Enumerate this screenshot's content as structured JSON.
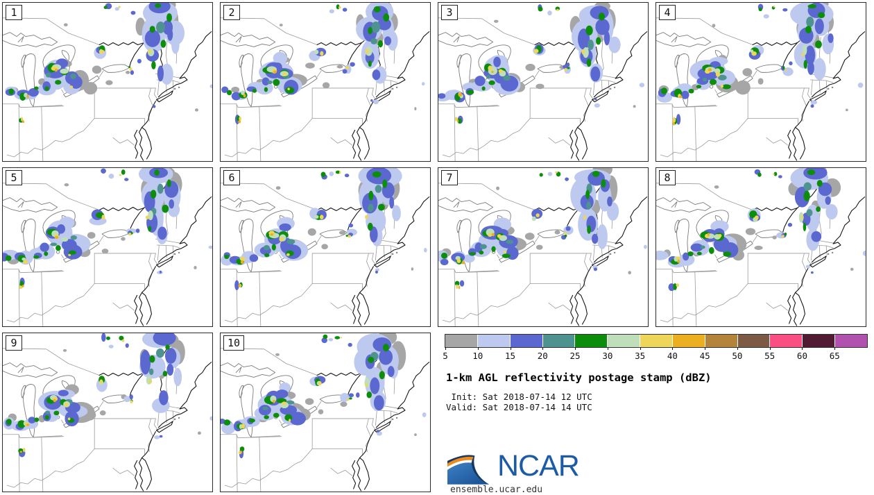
{
  "title": "1-km AGL reflectivity postage stamp (dBZ)",
  "init_line": " Init: Sat 2018-07-14 12 UTC",
  "valid_line": "Valid: Sat 2018-07-14 14 UTC",
  "logo": {
    "text": "NCAR",
    "url": "ensemble.ucar.edu",
    "blue": "#1d5ba6",
    "orange": "#ef8a1f"
  },
  "colorbar": {
    "ticks": [
      "5",
      "10",
      "15",
      "20",
      "25",
      "30",
      "35",
      "40",
      "45",
      "50",
      "55",
      "60",
      "65"
    ],
    "colors": [
      "#a6a6a6",
      "#bdc9ee",
      "#5a68cf",
      "#4f9391",
      "#0c8e0c",
      "#bedfba",
      "#eed65a",
      "#ecaf21",
      "#b5843b",
      "#7d5a44",
      "#fa4f82",
      "#521b34",
      "#b153ae"
    ]
  },
  "panels": [
    {
      "label": "1",
      "seed": 3
    },
    {
      "label": "2",
      "seed": 17
    },
    {
      "label": "3",
      "seed": 29
    },
    {
      "label": "4",
      "seed": 43
    },
    {
      "label": "5",
      "seed": 57
    },
    {
      "label": "6",
      "seed": 71
    },
    {
      "label": "7",
      "seed": 85
    },
    {
      "label": "8",
      "seed": 99
    },
    {
      "label": "9",
      "seed": 113
    },
    {
      "label": "10",
      "seed": 127
    }
  ],
  "splat_levels": [
    "#a6a6a6",
    "#bdc9ee",
    "#5a68cf",
    "#4f9391",
    "#0c8e0c",
    "#bedfba",
    "#eed65a",
    "#ecaf21"
  ],
  "base_splats": [
    [
      252,
      28,
      11,
      18,
      0
    ],
    [
      240,
      7,
      13,
      9,
      0
    ],
    [
      205,
      32,
      7,
      11,
      0
    ],
    [
      232,
      52,
      6,
      9,
      0
    ],
    [
      108,
      112,
      17,
      12,
      0
    ],
    [
      122,
      121,
      10,
      8,
      0
    ],
    [
      95,
      86,
      9,
      6,
      0
    ],
    [
      132,
      96,
      6,
      5,
      0
    ],
    [
      56,
      120,
      6,
      5,
      0
    ],
    [
      16,
      128,
      7,
      5,
      0
    ],
    [
      87,
      30,
      3,
      2,
      0
    ],
    [
      282,
      150,
      2,
      2,
      0
    ],
    [
      176,
      98,
      4,
      3,
      0
    ],
    [
      150,
      118,
      5,
      4,
      0
    ],
    [
      228,
      14,
      26,
      15,
      1
    ],
    [
      214,
      44,
      15,
      23,
      1
    ],
    [
      222,
      77,
      13,
      20,
      1
    ],
    [
      244,
      38,
      11,
      17,
      1
    ],
    [
      233,
      100,
      10,
      14,
      1
    ],
    [
      252,
      60,
      7,
      12,
      1
    ],
    [
      80,
      100,
      23,
      18,
      1
    ],
    [
      101,
      115,
      17,
      12,
      1
    ],
    [
      66,
      120,
      13,
      10,
      1
    ],
    [
      91,
      85,
      11,
      8,
      1
    ],
    [
      8,
      132,
      10,
      7,
      1
    ],
    [
      28,
      133,
      12,
      8,
      1
    ],
    [
      46,
      128,
      10,
      7,
      1
    ],
    [
      142,
      72,
      10,
      8,
      1
    ],
    [
      186,
      96,
      6,
      5,
      1
    ],
    [
      160,
      14,
      4,
      3,
      1
    ],
    [
      300,
      118,
      3,
      3,
      1
    ],
    [
      225,
      146,
      4,
      3,
      1
    ],
    [
      231,
      11,
      15,
      10,
      2
    ],
    [
      212,
      47,
      9,
      14,
      2
    ],
    [
      220,
      80,
      8,
      12,
      2
    ],
    [
      241,
      30,
      8,
      10,
      2
    ],
    [
      228,
      99,
      6,
      9,
      2
    ],
    [
      248,
      52,
      4,
      8,
      2
    ],
    [
      75,
      98,
      13,
      10,
      2
    ],
    [
      96,
      108,
      11,
      9,
      2
    ],
    [
      106,
      119,
      11,
      9,
      2
    ],
    [
      62,
      117,
      7,
      6,
      2
    ],
    [
      88,
      91,
      7,
      6,
      2
    ],
    [
      6,
      131,
      6,
      5,
      2
    ],
    [
      26,
      133,
      8,
      6,
      2
    ],
    [
      45,
      128,
      6,
      5,
      2
    ],
    [
      142,
      72,
      7,
      6,
      2
    ],
    [
      186,
      96,
      3,
      3,
      2
    ],
    [
      194,
      88,
      3,
      3,
      2
    ],
    [
      150,
      10,
      4,
      5,
      2
    ],
    [
      185,
      12,
      3,
      3,
      2
    ],
    [
      28,
      170,
      4,
      6,
      2
    ],
    [
      225,
      146,
      2,
      2,
      2
    ],
    [
      224,
      30,
      5,
      7,
      3
    ],
    [
      218,
      60,
      4,
      6,
      3
    ],
    [
      98,
      104,
      5,
      4,
      3
    ],
    [
      70,
      110,
      4,
      3,
      3
    ],
    [
      218,
      38,
      4,
      6,
      4
    ],
    [
      226,
      7,
      5,
      4,
      4
    ],
    [
      234,
      58,
      4,
      5,
      4
    ],
    [
      216,
      88,
      3,
      5,
      4
    ],
    [
      240,
      20,
      4,
      5,
      4
    ],
    [
      72,
      95,
      7,
      6,
      4
    ],
    [
      90,
      100,
      6,
      5,
      4
    ],
    [
      100,
      125,
      5,
      4,
      4
    ],
    [
      80,
      118,
      4,
      4,
      4
    ],
    [
      64,
      124,
      3,
      3,
      4
    ],
    [
      10,
      130,
      4,
      4,
      4
    ],
    [
      30,
      134,
      5,
      5,
      4
    ],
    [
      48,
      127,
      4,
      3,
      4
    ],
    [
      143,
      70,
      5,
      5,
      4
    ],
    [
      150,
      8,
      3,
      3,
      4
    ],
    [
      172,
      8,
      3,
      3,
      4
    ],
    [
      28,
      170,
      3,
      4,
      4
    ],
    [
      186,
      96,
      2,
      2,
      4
    ],
    [
      76,
      96,
      6,
      5,
      5
    ],
    [
      91,
      102,
      5,
      4,
      5
    ],
    [
      213,
      70,
      4,
      6,
      5
    ],
    [
      141,
      73,
      3,
      3,
      5
    ],
    [
      31,
      133,
      3,
      3,
      5
    ],
    [
      76,
      97,
      4,
      3,
      6
    ],
    [
      91,
      101,
      3,
      3,
      6
    ],
    [
      98,
      124,
      2,
      2,
      6
    ],
    [
      32,
      134,
      3,
      3,
      6
    ],
    [
      144,
      71,
      3,
      3,
      6
    ],
    [
      28,
      171,
      2,
      3,
      6
    ],
    [
      212,
      73,
      2,
      3,
      6
    ],
    [
      186,
      97,
      2,
      2,
      6
    ],
    [
      172,
      8,
      1.5,
      1.5,
      6
    ],
    [
      77,
      98,
      2,
      2,
      7
    ],
    [
      34,
      136,
      2,
      2,
      7
    ],
    [
      28,
      173,
      1.5,
      2,
      7
    ]
  ]
}
